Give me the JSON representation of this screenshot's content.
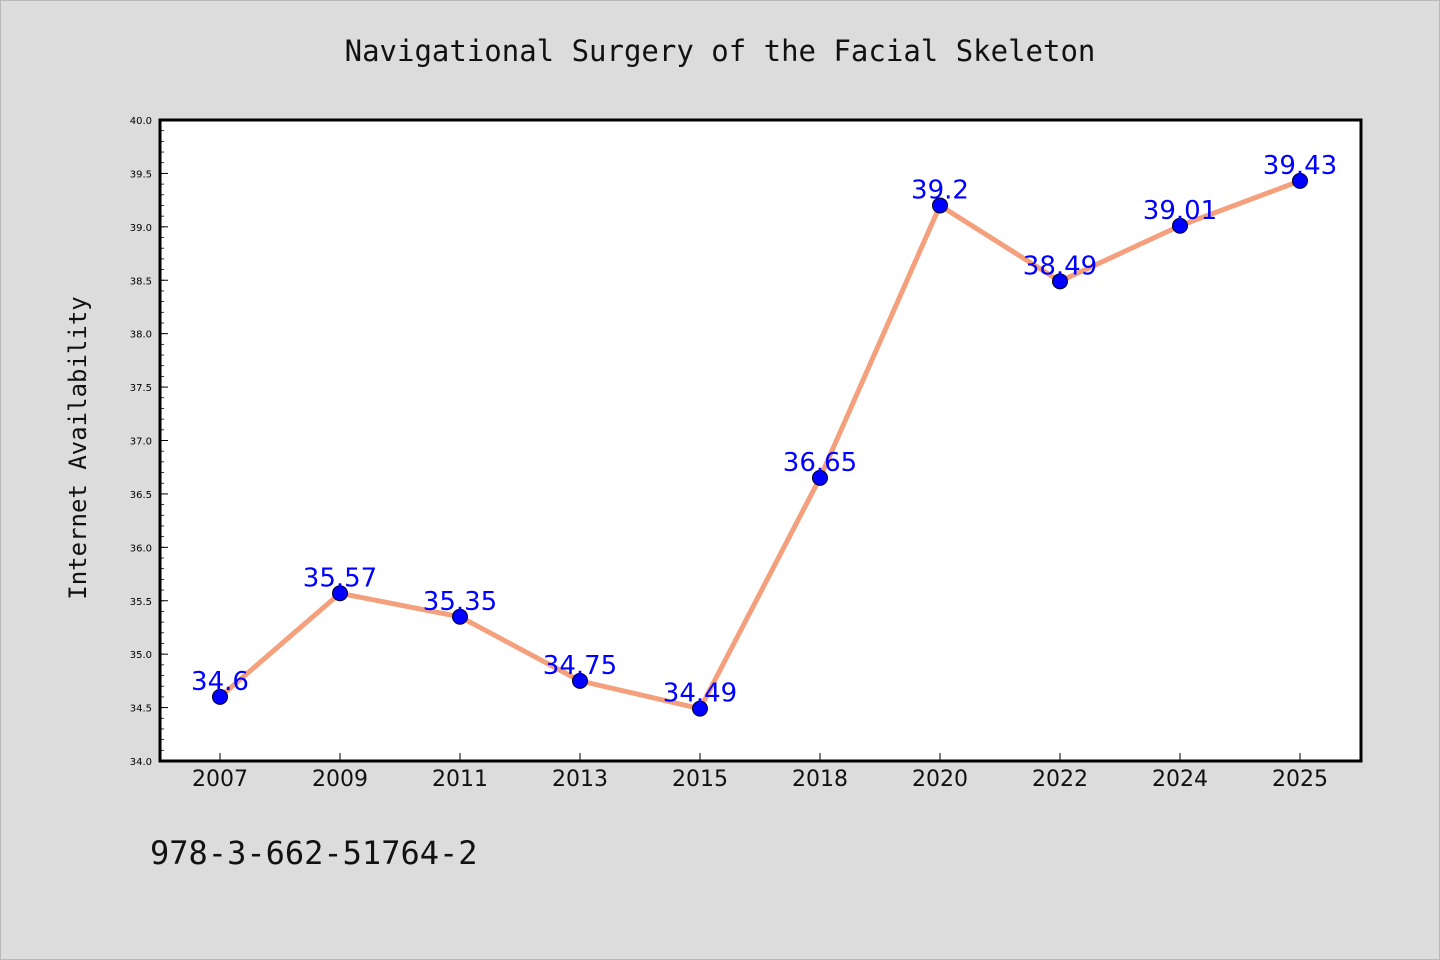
{
  "chart_data": {
    "type": "line",
    "title": "Navigational Surgery of the Facial Skeleton",
    "xlabel": "",
    "ylabel": "Internet Availability",
    "categories": [
      "2007",
      "2009",
      "2011",
      "2013",
      "2015",
      "2018",
      "2020",
      "2022",
      "2024",
      "2025"
    ],
    "series": [
      {
        "values": [
          34.6,
          35.57,
          35.35,
          34.75,
          34.49,
          36.65,
          39.2,
          38.49,
          39.01,
          39.43
        ]
      }
    ],
    "data_labels": [
      "34.6",
      "35.57",
      "35.35",
      "34.75",
      "34.49",
      "36.65",
      "39.2",
      "38.49",
      "39.01",
      "39.43"
    ],
    "ylim": [
      34.0,
      40.0
    ],
    "yticks": [
      "34.0",
      "34.5",
      "35.0",
      "35.5",
      "36.0",
      "36.5",
      "37.0",
      "37.5",
      "38.0",
      "38.5",
      "39.0",
      "39.5",
      "40.0"
    ],
    "grid": false,
    "legend": "none",
    "colors": {
      "line": "#f4a07c",
      "marker": "#0000ff",
      "label": "#0000ff",
      "background": "#dcdcdc",
      "plot_background": "#ffffff"
    }
  },
  "footer_text": "978-3-662-51764-2"
}
